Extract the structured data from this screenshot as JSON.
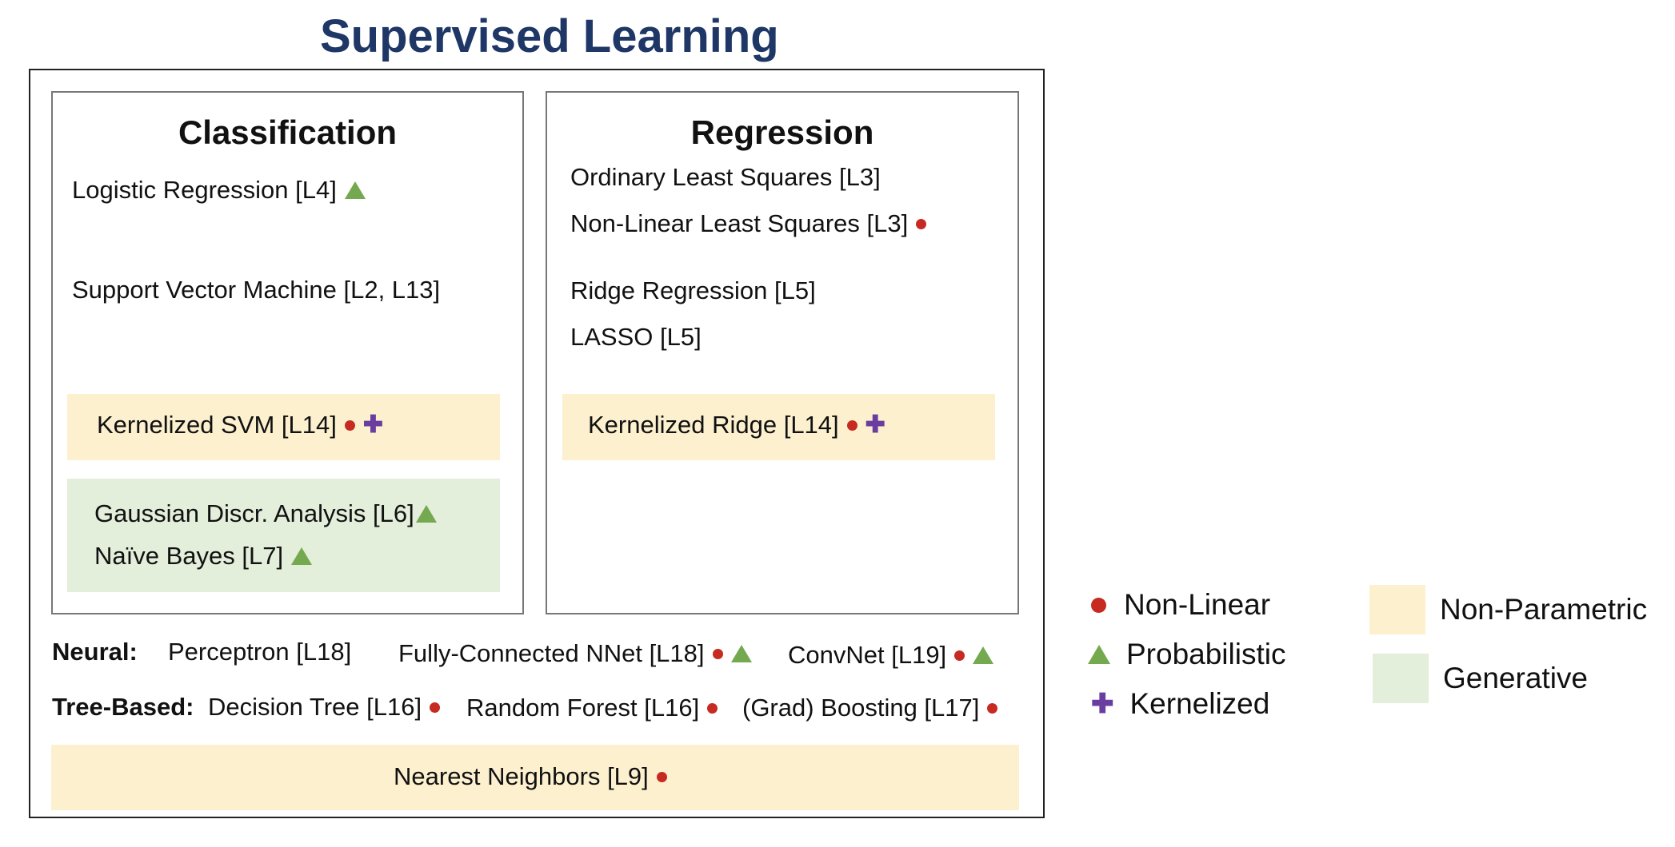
{
  "title": "Supervised Learning",
  "colors": {
    "title": "#1f3766",
    "non_linear": "#c62a21",
    "probabilistic": "#74a94f",
    "kernelized": "#6a3ea1",
    "non_parametric": "#fcf0cf",
    "generative": "#e3eedb"
  },
  "classification": {
    "title": "Classification",
    "logistic": "Logistic Regression [L4]",
    "svm": "Support Vector Machine [L2, L13]",
    "kernel_svm": "Kernelized SVM [L14]",
    "gda": "Gaussian Discr. Analysis [L6]",
    "naive_bayes": "Naïve Bayes [L7]"
  },
  "regression": {
    "title": "Regression",
    "ols": "Ordinary Least Squares [L3]",
    "nlls": "Non-Linear Least Squares [L3]",
    "ridge": "Ridge Regression [L5]",
    "lasso": "LASSO [L5]",
    "kernel_ridge": "Kernelized Ridge [L14]"
  },
  "neural": {
    "label": "Neural:",
    "perceptron": "Perceptron [L18]",
    "fcnn": "Fully-Connected NNet [L18]",
    "convnet": "ConvNet [L19]"
  },
  "tree": {
    "label": "Tree-Based:",
    "decision_tree": "Decision Tree [L16]",
    "random_forest": "Random Forest [L16]",
    "boosting": "(Grad) Boosting [L17]"
  },
  "nearest_neighbors": "Nearest Neighbors [L9]",
  "legend": {
    "non_linear": "Non-Linear",
    "probabilistic": "Probabilistic",
    "kernelized": "Kernelized",
    "non_parametric": "Non-Parametric",
    "generative": "Generative"
  }
}
